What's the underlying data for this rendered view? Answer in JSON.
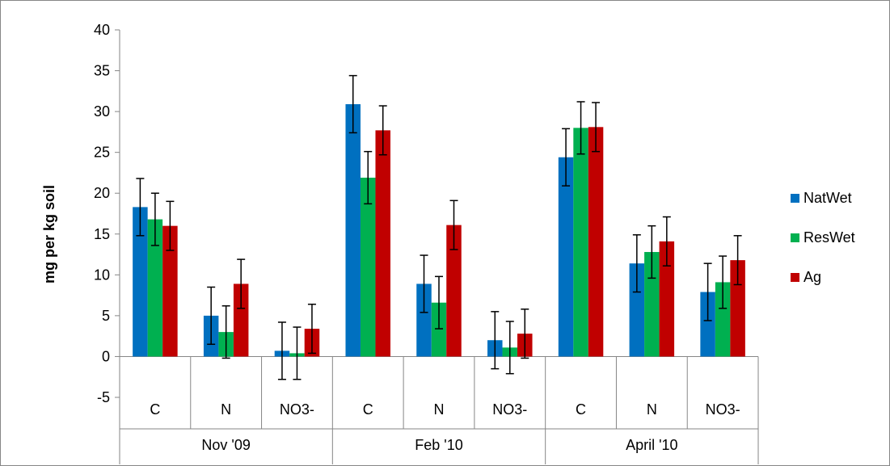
{
  "chart_data": {
    "type": "bar",
    "title": "",
    "xlabel": "",
    "ylabel": "mg per kg soil",
    "ylim": [
      -5,
      40
    ],
    "ytick_step": 5,
    "yticks": [
      "-5",
      "0",
      "5",
      "10",
      "15",
      "20",
      "25",
      "30",
      "35",
      "40"
    ],
    "grid": false,
    "legend_position": "right",
    "groups": [
      {
        "label": "Nov '09",
        "categories": [
          "C",
          "N",
          "NO3-"
        ]
      },
      {
        "label": "Feb '10",
        "categories": [
          "C",
          "N",
          "NO3-"
        ]
      },
      {
        "label": "April '10",
        "categories": [
          "C",
          "N",
          "NO3-"
        ]
      }
    ],
    "categories": [
      "C",
      "N",
      "NO3-",
      "C",
      "N",
      "NO3-",
      "C",
      "N",
      "NO3-"
    ],
    "series": [
      {
        "name": "NatWet",
        "color": "#0070C0",
        "values": [
          18.3,
          5.0,
          0.7,
          30.9,
          8.9,
          2.0,
          24.4,
          11.4,
          7.9
        ],
        "errors": [
          3.5,
          3.5,
          3.5,
          3.5,
          3.5,
          3.5,
          3.5,
          3.5,
          3.5
        ]
      },
      {
        "name": "ResWet",
        "color": "#00B050",
        "values": [
          16.8,
          3.0,
          0.4,
          21.9,
          6.6,
          1.1,
          28.0,
          12.8,
          9.1
        ],
        "errors": [
          3.2,
          3.2,
          3.2,
          3.2,
          3.2,
          3.2,
          3.2,
          3.2,
          3.2
        ]
      },
      {
        "name": "Ag",
        "color": "#C00000",
        "values": [
          16.0,
          8.9,
          3.4,
          27.7,
          16.1,
          2.8,
          28.1,
          14.1,
          11.8
        ],
        "errors": [
          3.0,
          3.0,
          3.0,
          3.0,
          3.0,
          3.0,
          3.0,
          3.0,
          3.0
        ]
      }
    ]
  }
}
